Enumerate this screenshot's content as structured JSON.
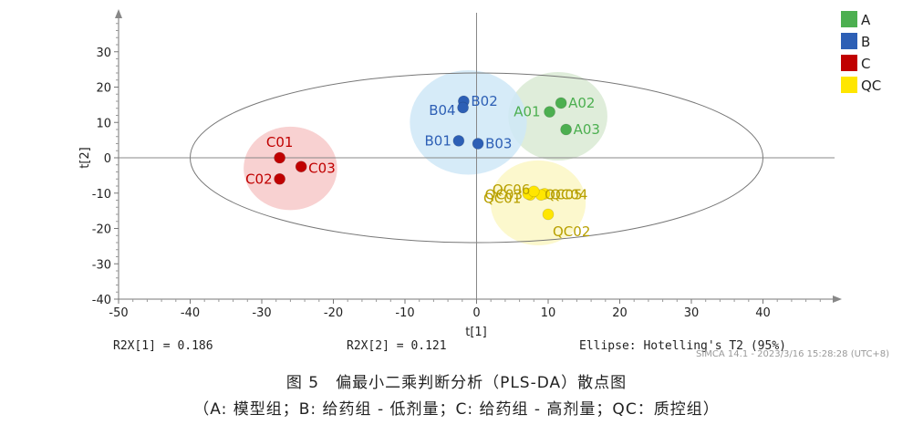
{
  "chart_data": {
    "type": "scatter",
    "xlabel": "t[1]",
    "ylabel": "t[2]",
    "xlim": [
      -50,
      50
    ],
    "ylim": [
      -40,
      40
    ],
    "x_ticks": [
      -50,
      -40,
      -30,
      -20,
      -10,
      0,
      10,
      20,
      30,
      40
    ],
    "y_ticks": [
      -40,
      -30,
      -20,
      -10,
      0,
      10,
      20,
      30
    ],
    "grid": false,
    "legend_position": "top-right",
    "series": [
      {
        "name": "A",
        "color": "#4caf50",
        "ellipse_color": "#d9ead3",
        "points": [
          {
            "label": "A01",
            "x": 10.2,
            "y": 13
          },
          {
            "label": "A02",
            "x": 11.8,
            "y": 15.5
          },
          {
            "label": "A03",
            "x": 12.5,
            "y": 8
          }
        ]
      },
      {
        "name": "B",
        "color": "#2d5fb5",
        "ellipse_color": "#cfe8f7",
        "points": [
          {
            "label": "B01",
            "x": -2.5,
            "y": 4.8
          },
          {
            "label": "B02",
            "x": -1.8,
            "y": 16
          },
          {
            "label": "B03",
            "x": 0.2,
            "y": 4
          },
          {
            "label": "B04",
            "x": -1.9,
            "y": 14.2
          }
        ]
      },
      {
        "name": "C",
        "color": "#c00000",
        "ellipse_color": "#f7c9c9",
        "points": [
          {
            "label": "C01",
            "x": -27.5,
            "y": 0
          },
          {
            "label": "C02",
            "x": -27.5,
            "y": -6
          },
          {
            "label": "C03",
            "x": -24.5,
            "y": -2.5
          }
        ]
      },
      {
        "name": "QC",
        "color": "#ffe600",
        "label_color": "#b8a000",
        "ellipse_color": "#fbf7c4",
        "points": [
          {
            "label": "QC01",
            "x": 7.5,
            "y": -10.5
          },
          {
            "label": "QC02",
            "x": 10,
            "y": -16
          },
          {
            "label": "QC03",
            "x": 7.2,
            "y": -10.2
          },
          {
            "label": "QC04",
            "x": 9.5,
            "y": -10.2
          },
          {
            "label": "QC05",
            "x": 9,
            "y": -10.5
          },
          {
            "label": "QC06",
            "x": 8,
            "y": -9.5
          }
        ]
      }
    ],
    "hotelling_ellipse": {
      "cx": 0,
      "cy": 0,
      "rx": 40,
      "ry": 24
    }
  },
  "stats": {
    "r2x1": "R2X[1] = 0.186",
    "r2x2": "R2X[2] = 0.121",
    "ellipse": "Ellipse: Hotelling's T2 (95%)",
    "stamp": "SIMCA 14.1 - 2023/3/16 15:28:28 (UTC+8)"
  },
  "caption": {
    "line1": "图 5　偏最小二乘判断分析（PLS-DA）散点图",
    "line2": "（A: 模型组；B: 给药组 - 低剂量；C: 给药组 - 高剂量；QC：质控组）"
  }
}
